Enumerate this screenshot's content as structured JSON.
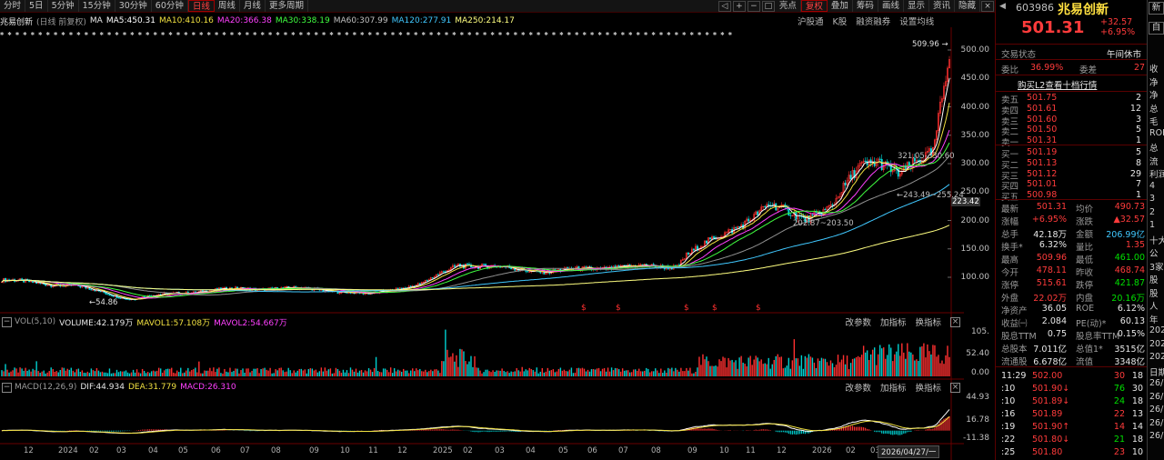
{
  "toolbar": {
    "periods": [
      "分时",
      "5日",
      "5分钟",
      "15分钟",
      "30分钟",
      "60分钟",
      "日线",
      "周线",
      "月线",
      "更多周期"
    ],
    "active_period": "日线",
    "right": [
      "亮点",
      "复权",
      "叠加",
      "筹码",
      "画线",
      "显示",
      "资讯",
      "隐藏"
    ],
    "active_right": "复权",
    "ctrl": [
      "+",
      "−",
      "□",
      "×"
    ]
  },
  "ma_row": {
    "name": "兆易创新",
    "mode": "(日线 前复权)",
    "ma_label": "MA",
    "ma": [
      {
        "t": "MA5:450.31",
        "color": "#ffffff"
      },
      {
        "t": "MA10:410.16",
        "color": "#f0e040"
      },
      {
        "t": "MA20:366.38",
        "color": "#ff40ff"
      },
      {
        "t": "MA30:338.19",
        "color": "#40ff40"
      },
      {
        "t": "MA60:307.99",
        "color": "#c0c0c0"
      },
      {
        "t": "MA120:277.91",
        "color": "#40c8ff"
      },
      {
        "t": "MA250:214.17",
        "color": "#ffff80"
      }
    ],
    "tools": [
      "沪股通",
      "K股",
      "融资融券",
      "设置均线"
    ]
  },
  "price_axis": [
    "500.00",
    "450.00",
    "400.00",
    "350.00",
    "300.00",
    "250.00",
    "200.00",
    "150.00",
    "100.00"
  ],
  "price_axis_values": [
    500,
    450,
    400,
    350,
    300,
    250,
    200,
    150,
    100
  ],
  "annotations": {
    "high": "509.96",
    "mid": "321.05",
    "mid2": "330.60",
    "low1": "243.49",
    "low2": "255.24",
    "low3": "202.87",
    "low4": "203.50",
    "low5": "54.86",
    "cur": "223.42"
  },
  "vol_panel": {
    "label": "VOL(5,10)",
    "volume": "VOLUME:42.179万",
    "mavol1": "MAVOL1:57.108万",
    "mavol2": "MAVOL2:54.667万",
    "axis": [
      "105.",
      "52.40",
      "0.00"
    ],
    "axis_values": [
      105,
      52.4,
      0
    ]
  },
  "macd_panel": {
    "label": "MACD(12,26,9)",
    "dif": "DIF:44.934",
    "dea": "DEA:31.779",
    "macd": "MACD:26.310",
    "axis": [
      "44.93",
      "16.78",
      "-11.38"
    ],
    "axis_values": [
      44.93,
      16.78,
      -11.38
    ]
  },
  "panel_buttons": [
    "改参数",
    "加指标",
    "换指标"
  ],
  "x_axis": [
    "12",
    "2024",
    "02",
    "03",
    "04",
    "05",
    "06",
    "07",
    "08",
    "09",
    "10",
    "11",
    "12",
    "2025",
    "02",
    "03",
    "04",
    "05",
    "06",
    "07",
    "08",
    "09",
    "10",
    "11",
    "12",
    "2026",
    "02",
    "03"
  ],
  "x_cursor": "2026/04/27/一",
  "quote": {
    "code": "603986",
    "name": "兆易创新",
    "price": "501.31",
    "change": "+32.57",
    "pct": "+6.95%",
    "side_btns": [
      "新",
      "自"
    ],
    "status_label": "交易状态",
    "status": "午间休市",
    "wb_label": "委比",
    "wb": "36.99%",
    "wc_label": "委差",
    "wc": "27",
    "l2": "购买L2查看十档行情",
    "asks": [
      [
        "卖五",
        "501.75",
        "2"
      ],
      [
        "卖四",
        "501.61",
        "12"
      ],
      [
        "卖三",
        "501.60",
        "3"
      ],
      [
        "卖二",
        "501.50",
        "5"
      ],
      [
        "卖一",
        "501.31",
        "1"
      ]
    ],
    "bids": [
      [
        "买一",
        "501.19",
        "5"
      ],
      [
        "买二",
        "501.13",
        "8"
      ],
      [
        "买三",
        "501.12",
        "29"
      ],
      [
        "买四",
        "501.01",
        "7"
      ],
      [
        "买五",
        "500.98",
        "1"
      ]
    ],
    "stats": [
      [
        "最新",
        "501.31",
        "均价",
        "490.73"
      ],
      [
        "涨幅",
        "+6.95%",
        "涨跌",
        "▲32.57"
      ],
      [
        "总手",
        "42.18万",
        "金额",
        "206.99亿"
      ],
      [
        "换手*",
        "6.32%",
        "量比",
        "1.35"
      ],
      [
        "最高",
        "509.96",
        "最低",
        "461.00"
      ],
      [
        "今开",
        "478.11",
        "昨收",
        "468.74"
      ],
      [
        "涨停",
        "515.61",
        "跌停",
        "421.87"
      ],
      [
        "外盘",
        "22.02万",
        "内盘",
        "20.16万"
      ],
      [
        "净资产",
        "36.05",
        "ROE",
        "6.12%"
      ],
      [
        "收益㈠",
        "2.084",
        "PE(动)*",
        "60.13"
      ],
      [
        "股息TTM",
        "0.75",
        "股息率TTM",
        "0.15%"
      ],
      [
        "总股本",
        "7.011亿",
        "总值1*",
        "3515亿"
      ],
      [
        "流通股",
        "6.678亿",
        "流值",
        "3348亿"
      ]
    ],
    "ticks": [
      [
        "11:29",
        "502.00",
        "30",
        "18"
      ],
      [
        ":10",
        "501.90↓",
        "76",
        "30"
      ],
      [
        ":10",
        "501.89↓",
        "24",
        "18"
      ],
      [
        ":16",
        "501.89",
        "22",
        "13"
      ],
      [
        ":19",
        "501.90↑",
        "14",
        "14"
      ],
      [
        ":22",
        "501.80↓",
        "21",
        "18"
      ],
      [
        ":25",
        "501.80",
        "23",
        "10"
      ]
    ],
    "edge": [
      "收",
      "净",
      "净",
      "总",
      "毛",
      "ROE",
      "总",
      "流",
      "利润",
      "4",
      "3",
      "2",
      "1",
      "十大",
      "公",
      "3家",
      "股",
      "股",
      "人",
      "年",
      "202",
      "202",
      "202",
      "日期",
      "26/",
      "26/",
      "26/",
      "26/",
      "26/"
    ]
  }
}
